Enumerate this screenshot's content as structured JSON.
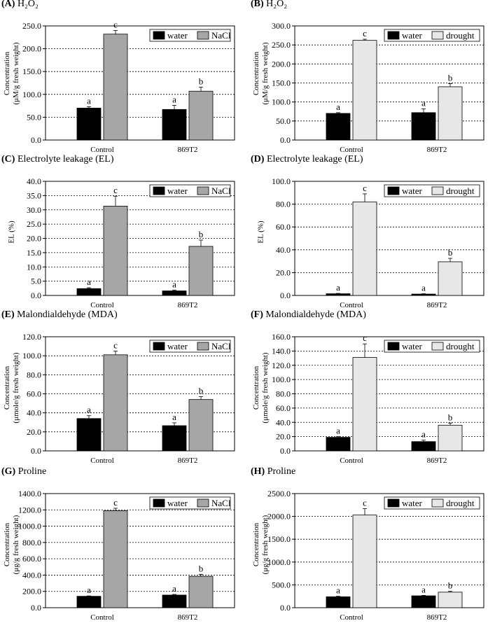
{
  "figure": {
    "panels": [
      {
        "id": "A",
        "letter": "(A)",
        "title": "H₂O₂",
        "ylabel": [
          "Concentration",
          "(μM/g fresh weight)"
        ]
      },
      {
        "id": "B",
        "letter": "(B)",
        "title": "H₂O₂",
        "ylabel": [
          "Concentration",
          "(μM/g fresh weight)"
        ]
      },
      {
        "id": "C",
        "letter": "(C)",
        "title": "Electrolyte leakage (EL)",
        "ylabel": [
          "EL (%)"
        ]
      },
      {
        "id": "D",
        "letter": "(D)",
        "title": "Electrolyte leakage (EL)",
        "ylabel": [
          "EL (%)"
        ]
      },
      {
        "id": "E",
        "letter": "(E)",
        "title": "Malondialdehyde (MDA)",
        "ylabel": [
          "Concentration",
          "(μmole/g fresh weight)"
        ]
      },
      {
        "id": "F",
        "letter": "(F)",
        "title": "Malondialdehyde (MDA)",
        "ylabel": [
          "Concentration",
          "(μmole/g fresh weight)"
        ]
      },
      {
        "id": "G",
        "letter": "(G)",
        "title": "Proline",
        "ylabel": [
          "Concentration",
          "(μg/g fresh weight)"
        ]
      },
      {
        "id": "H",
        "letter": "(H)",
        "title": "Proline",
        "ylabel": [
          "Concentration",
          "(μg/g fresh weight)"
        ]
      }
    ],
    "colors": {
      "water": "#000000",
      "nacl": "#a6a6a6",
      "drought": "#e7e7e7",
      "axis": "#000000",
      "grid": "#000000"
    }
  },
  "chart_data": [
    {
      "type": "bar",
      "categories": [
        "Control",
        "869T2"
      ],
      "ylim": [
        0,
        250
      ],
      "ticks": [
        "0.0",
        "50.0",
        "100.0",
        "150.0",
        "200.0",
        "250.0"
      ],
      "grid": "dashed",
      "series": [
        {
          "name": "water",
          "values": [
            70,
            67
          ],
          "errors": [
            3,
            9
          ],
          "labels": [
            "a",
            "a"
          ]
        },
        {
          "name": "NaCl",
          "values": [
            232,
            107
          ],
          "errors": [
            8,
            9
          ],
          "labels": [
            "c",
            "b"
          ]
        }
      ],
      "legend": "top-right"
    },
    {
      "type": "bar",
      "categories": [
        "Control",
        "869T2"
      ],
      "ylim": [
        0,
        300
      ],
      "ticks": [
        "0.0",
        "50.0",
        "100.0",
        "150.0",
        "200.0",
        "250.0",
        "300.0"
      ],
      "grid": "dashed",
      "series": [
        {
          "name": "water",
          "values": [
            70,
            72
          ],
          "errors": [
            2,
            10
          ],
          "labels": [
            "a",
            "a"
          ]
        },
        {
          "name": "drought",
          "values": [
            262,
            140
          ],
          "errors": [
            3,
            8
          ],
          "labels": [
            "c",
            "b"
          ]
        }
      ],
      "legend": "top-right"
    },
    {
      "type": "bar",
      "categories": [
        "Control",
        "869T2"
      ],
      "ylim": [
        0,
        40
      ],
      "ticks": [
        "0.0",
        "5.0",
        "10.0",
        "15.0",
        "20.0",
        "25.0",
        "30.0",
        "35.0",
        "40.0"
      ],
      "grid": "dashed",
      "series": [
        {
          "name": "water",
          "values": [
            2.4,
            1.6
          ],
          "errors": [
            0.3,
            0.3
          ],
          "labels": [
            "a",
            "a"
          ]
        },
        {
          "name": "NaCl",
          "values": [
            31.3,
            17.2
          ],
          "errors": [
            3.5,
            2.2
          ],
          "labels": [
            "c",
            "b"
          ]
        }
      ],
      "legend": "top-right"
    },
    {
      "type": "bar",
      "categories": [
        "Control",
        "869T2"
      ],
      "ylim": [
        0,
        100
      ],
      "ticks": [
        "0.0",
        "20.0",
        "40.0",
        "60.0",
        "80.0",
        "100.0"
      ],
      "grid": "dashed",
      "series": [
        {
          "name": "water",
          "values": [
            1.5,
            1.2
          ],
          "errors": [
            0.3,
            0.3
          ],
          "labels": [
            "a",
            "a"
          ]
        },
        {
          "name": "drought",
          "values": [
            82,
            29.5
          ],
          "errors": [
            7,
            3
          ],
          "labels": [
            "c",
            "b"
          ]
        }
      ],
      "legend": "top-right"
    },
    {
      "type": "bar",
      "categories": [
        "Control",
        "869T2"
      ],
      "ylim": [
        0,
        120
      ],
      "ticks": [
        "0.0",
        "20.0",
        "40.0",
        "60.0",
        "80.0",
        "100.0",
        "120.0"
      ],
      "grid": "dashed",
      "series": [
        {
          "name": "water",
          "values": [
            34,
            26.5
          ],
          "errors": [
            3,
            3
          ],
          "labels": [
            "a",
            "a"
          ]
        },
        {
          "name": "NaCl",
          "values": [
            101,
            54
          ],
          "errors": [
            4,
            3
          ],
          "labels": [
            "c",
            "b"
          ]
        }
      ],
      "legend": "top-right"
    },
    {
      "type": "bar",
      "categories": [
        "Control",
        "869T2"
      ],
      "ylim": [
        0,
        160
      ],
      "ticks": [
        "0.0",
        "20.0",
        "40.0",
        "60.0",
        "80.0",
        "100.0",
        "120.0",
        "140.0",
        "160.0"
      ],
      "grid": "dashed",
      "series": [
        {
          "name": "water",
          "values": [
            19,
            13
          ],
          "errors": [
            1,
            2
          ],
          "labels": [
            "a",
            "a"
          ]
        },
        {
          "name": "drought",
          "values": [
            131,
            36
          ],
          "errors": [
            19,
            3
          ],
          "labels": [
            "c",
            "b"
          ]
        }
      ],
      "legend": "top-right"
    },
    {
      "type": "bar",
      "categories": [
        "Control",
        "869T2"
      ],
      "ylim": [
        0,
        1400
      ],
      "ticks": [
        "0.0",
        "200.0",
        "400.0",
        "600.0",
        "800.0",
        "1000.0",
        "1200.0",
        "1400.0"
      ],
      "grid": "dashed",
      "series": [
        {
          "name": "water",
          "values": [
            140,
            155
          ],
          "errors": [
            5,
            8
          ],
          "labels": [
            "a",
            "a"
          ]
        },
        {
          "name": "NaCl",
          "values": [
            1190,
            385
          ],
          "errors": [
            30,
            25
          ],
          "labels": [
            "c",
            "b"
          ]
        }
      ],
      "legend": "top-right"
    },
    {
      "type": "bar",
      "categories": [
        "Control",
        "869T2"
      ],
      "ylim": [
        0,
        2500
      ],
      "ticks": [
        "0.0",
        "500.0",
        "1000.0",
        "1500.0",
        "2000.0",
        "2500.0"
      ],
      "grid": "dashed",
      "series": [
        {
          "name": "water",
          "values": [
            240,
            260
          ],
          "errors": [
            10,
            10
          ],
          "labels": [
            "a",
            "a"
          ]
        },
        {
          "name": "drought",
          "values": [
            2030,
            340
          ],
          "errors": [
            140,
            20
          ],
          "labels": [
            "c",
            "b"
          ]
        }
      ],
      "legend": "top-right"
    }
  ]
}
